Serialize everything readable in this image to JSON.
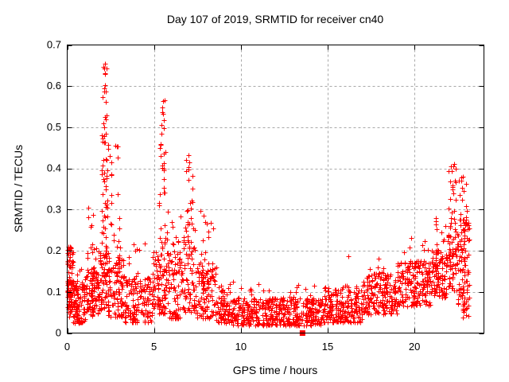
{
  "window": {
    "background": "#ffffff"
  },
  "chart_data": {
    "type": "scatter",
    "title": "Day 107 of 2019, SRMTID for receiver cn40",
    "xlabel": "GPS time / hours",
    "ylabel": "SRMTID / TECUs",
    "xlim": [
      0,
      24
    ],
    "ylim": [
      0,
      0.7
    ],
    "xticks": {
      "values": [
        0,
        5,
        10,
        15,
        20
      ],
      "labels": [
        "0",
        "5",
        "10",
        "15",
        "20"
      ]
    },
    "yticks": {
      "values": [
        0,
        0.1,
        0.2,
        0.3,
        0.4,
        0.5,
        0.6,
        0.7
      ],
      "labels": [
        "0",
        "0.1",
        "0.2",
        "0.3",
        "0.4",
        "0.5",
        "0.6",
        "0.7"
      ]
    },
    "grid": {
      "shown": true,
      "style": "dashed",
      "color": "#a8a8a8"
    },
    "axis_color": "#000000",
    "series_name": "SRMTID",
    "marker": {
      "shape": "plus",
      "color": "#ff0000",
      "size": 7
    },
    "x_data_range": [
      0,
      23.15
    ],
    "cloud_components": [
      [
        0.0,
        0.35,
        0.04,
        0.13,
        45,
        1.0
      ],
      [
        0.0,
        0.35,
        0.09,
        0.215,
        55,
        1.1
      ],
      [
        0.35,
        1.05,
        0.025,
        0.125,
        90,
        1.3
      ],
      [
        0.45,
        1.0,
        0.1,
        0.165,
        12,
        1.2
      ],
      [
        1.05,
        1.8,
        0.04,
        0.155,
        85,
        1.2
      ],
      [
        1.15,
        1.75,
        0.13,
        0.31,
        22,
        1.5
      ],
      [
        1.8,
        2.45,
        0.05,
        0.21,
        70,
        1.3
      ],
      [
        1.95,
        2.35,
        0.14,
        0.53,
        55,
        1.5
      ],
      [
        2.0,
        2.3,
        0.44,
        0.655,
        12,
        1.1
      ],
      [
        2.35,
        3.3,
        0.04,
        0.19,
        85,
        1.4
      ],
      [
        2.4,
        3.05,
        0.15,
        0.46,
        28,
        1.9
      ],
      [
        3.3,
        4.9,
        0.025,
        0.135,
        130,
        1.4
      ],
      [
        3.4,
        4.8,
        0.1,
        0.22,
        18,
        1.7
      ],
      [
        4.9,
        5.85,
        0.045,
        0.21,
        85,
        1.3
      ],
      [
        5.2,
        5.8,
        0.12,
        0.46,
        40,
        1.6
      ],
      [
        5.35,
        5.65,
        0.4,
        0.575,
        10,
        1.1
      ],
      [
        5.85,
        6.6,
        0.035,
        0.2,
        70,
        1.4
      ],
      [
        5.9,
        6.55,
        0.14,
        0.31,
        14,
        1.5
      ],
      [
        6.6,
        7.35,
        0.05,
        0.26,
        65,
        1.3
      ],
      [
        6.8,
        7.25,
        0.18,
        0.445,
        24,
        1.4
      ],
      [
        7.35,
        8.6,
        0.035,
        0.16,
        95,
        1.3
      ],
      [
        7.5,
        8.45,
        0.12,
        0.305,
        30,
        1.7
      ],
      [
        8.6,
        9.45,
        0.025,
        0.12,
        70,
        1.3
      ],
      [
        9.45,
        14.65,
        0.018,
        0.085,
        430,
        1.2
      ],
      [
        9.6,
        14.5,
        0.065,
        0.118,
        30,
        1.3
      ],
      [
        14.65,
        17.0,
        0.025,
        0.115,
        210,
        1.2
      ],
      [
        17.0,
        19.0,
        0.045,
        0.145,
        175,
        1.2
      ],
      [
        17.2,
        18.9,
        0.11,
        0.185,
        14,
        1.3
      ],
      [
        19.0,
        21.0,
        0.065,
        0.175,
        185,
        1.1
      ],
      [
        19.3,
        20.95,
        0.15,
        0.235,
        14,
        1.3
      ],
      [
        21.0,
        21.9,
        0.085,
        0.205,
        95,
        1.1
      ],
      [
        21.2,
        21.85,
        0.16,
        0.285,
        14,
        1.3
      ],
      [
        21.9,
        22.45,
        0.1,
        0.26,
        55,
        1.1
      ],
      [
        21.95,
        22.4,
        0.23,
        0.415,
        24,
        1.2
      ],
      [
        22.45,
        23.15,
        0.05,
        0.275,
        95,
        1.0
      ],
      [
        22.55,
        23.0,
        0.26,
        0.39,
        14,
        1.2
      ],
      [
        22.75,
        23.15,
        0.03,
        0.085,
        12,
        1.0
      ]
    ],
    "extra_points": [
      [
        2.13,
        0.643
      ],
      [
        2.16,
        0.632
      ],
      [
        2.14,
        0.594
      ],
      [
        2.2,
        0.561
      ],
      [
        2.18,
        0.525
      ],
      [
        5.5,
        0.563
      ],
      [
        5.48,
        0.548
      ],
      [
        5.52,
        0.532
      ],
      [
        5.45,
        0.484
      ],
      [
        7.0,
        0.432
      ],
      [
        7.05,
        0.415
      ],
      [
        6.98,
        0.398
      ],
      [
        22.1,
        0.405
      ],
      [
        22.15,
        0.393
      ],
      [
        22.05,
        0.368
      ],
      [
        22.7,
        0.378
      ],
      [
        22.75,
        0.352
      ],
      [
        22.85,
        0.345
      ],
      [
        0.05,
        0.21
      ],
      [
        16.2,
        0.186
      ],
      [
        9.55,
        0.124
      ],
      [
        11.0,
        0.119
      ]
    ],
    "special_points": [
      {
        "x": 13.55,
        "y": 0.0,
        "marker": "filled-square",
        "color": "#ff0000"
      }
    ]
  }
}
